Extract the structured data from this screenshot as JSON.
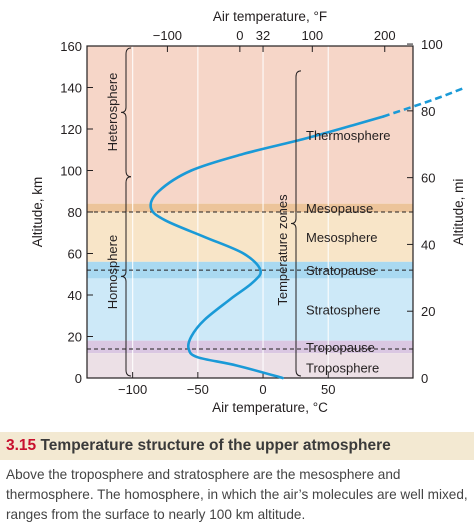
{
  "chart_data": {
    "type": "line",
    "top_axis_title": "Air temperature, °F",
    "top_ticks": [
      "−100",
      "0",
      "32",
      "100",
      "200"
    ],
    "top_tick_values_f": [
      -100,
      0,
      32,
      100,
      200
    ],
    "bottom_axis_title": "Air temperature, °C",
    "bottom_ticks": [
      "−100",
      "−50",
      "0",
      "50"
    ],
    "bottom_tick_values_c": [
      -100,
      -50,
      0,
      50
    ],
    "left_axis_title": "Altitude, km",
    "left_ticks": [
      "160",
      "140",
      "120",
      "100",
      "80",
      "60",
      "40",
      "20",
      "0"
    ],
    "left_tick_values_km": [
      160,
      140,
      120,
      100,
      80,
      60,
      40,
      20,
      0
    ],
    "right_axis_title": "Altitude, mi",
    "right_ticks": [
      "100",
      "80",
      "60",
      "40",
      "20",
      "0"
    ],
    "right_tick_values_mi": [
      100,
      80,
      60,
      40,
      20,
      0
    ],
    "xlim_c": [
      -135,
      115
    ],
    "ylim_km": [
      0,
      160
    ],
    "layers": [
      {
        "name": "Thermosphere",
        "from_km": 84,
        "to_km": 160,
        "color": "#f6d6c8"
      },
      {
        "name": "Mesopause",
        "from_km": 80,
        "to_km": 84,
        "color": "#ecc49a"
      },
      {
        "name": "Mesosphere",
        "from_km": 56,
        "to_km": 80,
        "color": "#f8e5c8"
      },
      {
        "name": "Stratopause",
        "from_km": 48,
        "to_km": 56,
        "color": "#a9d9f1"
      },
      {
        "name": "Stratosphere",
        "from_km": 18,
        "to_km": 48,
        "color": "#cde9f8"
      },
      {
        "name": "Tropopause",
        "from_km": 12,
        "to_km": 18,
        "color": "#dac7e2"
      },
      {
        "name": "Troposphere",
        "from_km": 0,
        "to_km": 12,
        "color": "#ece0e6"
      }
    ],
    "dashed_lines_km": [
      80,
      52,
      14
    ],
    "zone_labels": [
      {
        "text": "Thermosphere",
        "km": 117
      },
      {
        "text": "Mesopause",
        "km": 82
      },
      {
        "text": "Mesosphere",
        "km": 68
      },
      {
        "text": "Stratopause",
        "km": 52
      },
      {
        "text": "Stratosphere",
        "km": 33
      },
      {
        "text": "Tropopause",
        "km": 15
      },
      {
        "text": "Troposphere",
        "km": 5
      }
    ],
    "temperature_zones_label": "Temperature zones",
    "heterosphere_label": "Heterosphere",
    "homosphere_label": "Homosphere",
    "heterosphere_range_km": [
      97,
      160
    ],
    "homosphere_range_km": [
      0,
      97
    ],
    "temperature_curve": {
      "solid": [
        {
          "c": 15,
          "km": 0
        },
        {
          "c": -20,
          "km": 6
        },
        {
          "c": -50,
          "km": 10
        },
        {
          "c": -57,
          "km": 14
        },
        {
          "c": -55,
          "km": 20
        },
        {
          "c": -45,
          "km": 28
        },
        {
          "c": -25,
          "km": 38
        },
        {
          "c": -8,
          "km": 46
        },
        {
          "c": -2,
          "km": 52
        },
        {
          "c": -15,
          "km": 60
        },
        {
          "c": -45,
          "km": 68
        },
        {
          "c": -75,
          "km": 76
        },
        {
          "c": -86,
          "km": 82
        },
        {
          "c": -80,
          "km": 90
        },
        {
          "c": -55,
          "km": 100
        },
        {
          "c": -15,
          "km": 108
        },
        {
          "c": 30,
          "km": 115
        },
        {
          "c": 70,
          "km": 122
        },
        {
          "c": 92,
          "km": 126
        }
      ],
      "dashed": [
        {
          "c": 92,
          "km": 126
        },
        {
          "c": 130,
          "km": 134
        },
        {
          "c": 155,
          "km": 140
        }
      ]
    }
  },
  "caption": {
    "number": "3.15",
    "title": "Temperature structure of the upper atmosphere",
    "body": "Above the troposphere and stratosphere are the mesosphere and thermosphere. The homosphere, in which the air’s molecules are well mixed, ranges from the surface to nearly 100 km altitude."
  }
}
